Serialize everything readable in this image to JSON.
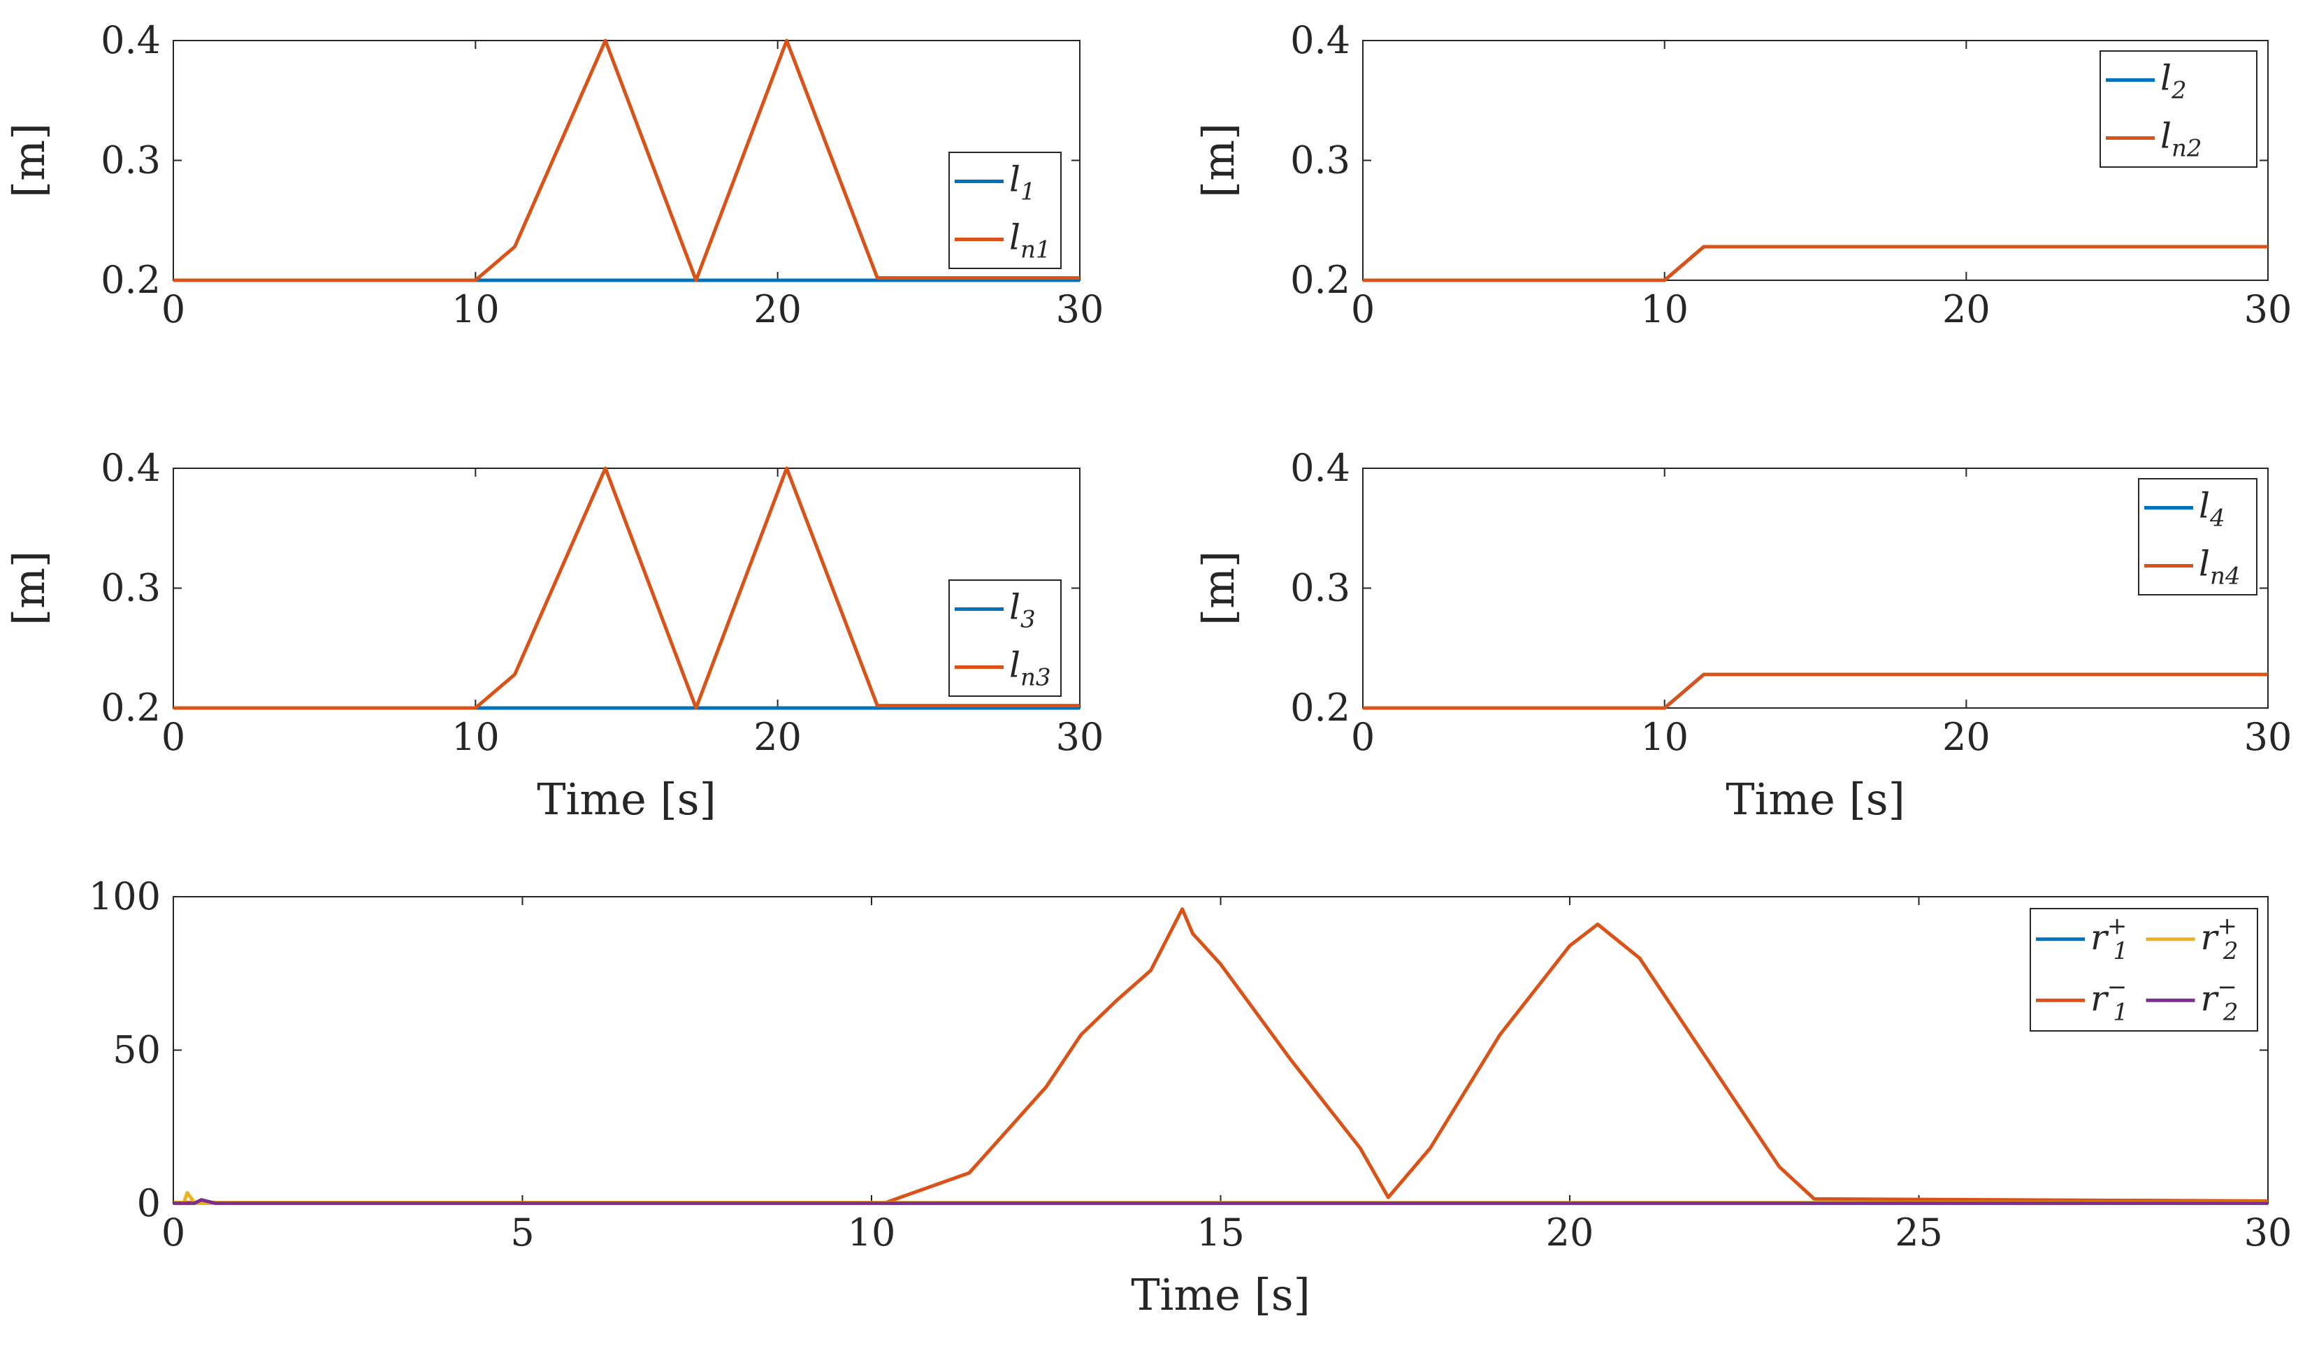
{
  "colors": {
    "blue": "#0072BD",
    "orange": "#D95319",
    "yellow": "#EDB120",
    "purple": "#7E2F8E",
    "axis": "#262626"
  },
  "chart_data": [
    {
      "type": "line",
      "id": "p1",
      "ylabel": "[m]",
      "xlabel": "",
      "xlim": [
        0,
        30
      ],
      "ylim": [
        0.2,
        0.4
      ],
      "xticks": [
        "0",
        "10",
        "20",
        "30"
      ],
      "yticks": [
        "0.2",
        "0.3",
        "0.4"
      ],
      "legend_position": "right",
      "series": [
        {
          "name": "l",
          "sub": "1",
          "color": "#0072BD",
          "x": [
            0,
            30
          ],
          "y": [
            0.2,
            0.2
          ]
        },
        {
          "name": "l",
          "sub": "n1",
          "color": "#D95319",
          "x": [
            0,
            10,
            11.3,
            14.3,
            17.3,
            20.3,
            23.3,
            30
          ],
          "y": [
            0.2,
            0.2,
            0.228,
            0.4,
            0.2,
            0.4,
            0.202,
            0.202
          ]
        }
      ]
    },
    {
      "type": "line",
      "id": "p2",
      "ylabel": "[m]",
      "xlabel": "",
      "xlim": [
        0,
        30
      ],
      "ylim": [
        0.2,
        0.4
      ],
      "xticks": [
        "0",
        "10",
        "20",
        "30"
      ],
      "yticks": [
        "0.2",
        "0.3",
        "0.4"
      ],
      "legend_position": "top-right",
      "series": [
        {
          "name": "l",
          "sub": "2",
          "color": "#0072BD",
          "x": [
            0,
            10,
            11.3,
            30
          ],
          "y": [
            0.2,
            0.2,
            0.228,
            0.228
          ]
        },
        {
          "name": "l",
          "sub": "n2",
          "color": "#D95319",
          "x": [
            0,
            10,
            11.3,
            30
          ],
          "y": [
            0.2,
            0.2,
            0.228,
            0.228
          ]
        }
      ]
    },
    {
      "type": "line",
      "id": "p3",
      "ylabel": "[m]",
      "xlabel": "Time [s]",
      "xlim": [
        0,
        30
      ],
      "ylim": [
        0.2,
        0.4
      ],
      "xticks": [
        "0",
        "10",
        "20",
        "30"
      ],
      "yticks": [
        "0.2",
        "0.3",
        "0.4"
      ],
      "legend_position": "bottom-right",
      "series": [
        {
          "name": "l",
          "sub": "3",
          "color": "#0072BD",
          "x": [
            0,
            30
          ],
          "y": [
            0.2,
            0.2
          ]
        },
        {
          "name": "l",
          "sub": "n3",
          "color": "#D95319",
          "x": [
            0,
            10,
            11.3,
            14.3,
            17.3,
            20.3,
            23.3,
            30
          ],
          "y": [
            0.2,
            0.2,
            0.228,
            0.4,
            0.2,
            0.4,
            0.202,
            0.202
          ]
        }
      ]
    },
    {
      "type": "line",
      "id": "p4",
      "ylabel": "[m]",
      "xlabel": "Time [s]",
      "xlim": [
        0,
        30
      ],
      "ylim": [
        0.2,
        0.4
      ],
      "xticks": [
        "0",
        "10",
        "20",
        "30"
      ],
      "yticks": [
        "0.2",
        "0.3",
        "0.4"
      ],
      "legend_position": "top-right",
      "series": [
        {
          "name": "l",
          "sub": "4",
          "color": "#0072BD",
          "x": [
            0,
            10,
            11.3,
            30
          ],
          "y": [
            0.2,
            0.2,
            0.228,
            0.228
          ]
        },
        {
          "name": "l",
          "sub": "n4",
          "color": "#D95319",
          "x": [
            0,
            10,
            11.3,
            30
          ],
          "y": [
            0.2,
            0.2,
            0.228,
            0.228
          ]
        }
      ]
    },
    {
      "type": "line",
      "id": "p5",
      "ylabel": "",
      "xlabel": "Time [s]",
      "xlim": [
        0,
        30
      ],
      "ylim": [
        0,
        100
      ],
      "xticks": [
        "0",
        "5",
        "10",
        "15",
        "20",
        "25",
        "30"
      ],
      "yticks": [
        "0",
        "50",
        "100"
      ],
      "legend_position": "top-right",
      "legend_columns": 2,
      "series": [
        {
          "name": "r",
          "sub": "1",
          "sup": "+",
          "color": "#0072BD",
          "x": [
            0,
            30
          ],
          "y": [
            0.2,
            0.2
          ]
        },
        {
          "name": "r",
          "sub": "1",
          "sup": "−",
          "color": "#D95319",
          "x": [
            0,
            10.2,
            11.4,
            12.5,
            13.0,
            13.5,
            14.0,
            14.45,
            14.6,
            15.0,
            16.0,
            17.0,
            17.4,
            18.0,
            19.0,
            20.0,
            20.4,
            21.0,
            22.0,
            23.0,
            23.5,
            30
          ],
          "y": [
            0.3,
            0.3,
            10,
            38,
            55,
            66,
            76,
            96,
            88,
            78,
            47,
            18,
            2,
            18,
            55,
            84,
            91,
            80,
            46,
            12,
            1.5,
            0.8
          ]
        },
        {
          "name": "r",
          "sub": "2",
          "sup": "+",
          "color": "#EDB120",
          "x": [
            0,
            0.15,
            0.2,
            0.3,
            30
          ],
          "y": [
            0.3,
            0.3,
            3.5,
            0.3,
            0.3
          ]
        },
        {
          "name": "r",
          "sub": "2",
          "sup": "−",
          "color": "#7E2F8E",
          "x": [
            0,
            0.3,
            0.4,
            0.6,
            30
          ],
          "y": [
            0.1,
            0.1,
            1.2,
            0.1,
            0.1
          ]
        }
      ]
    }
  ]
}
